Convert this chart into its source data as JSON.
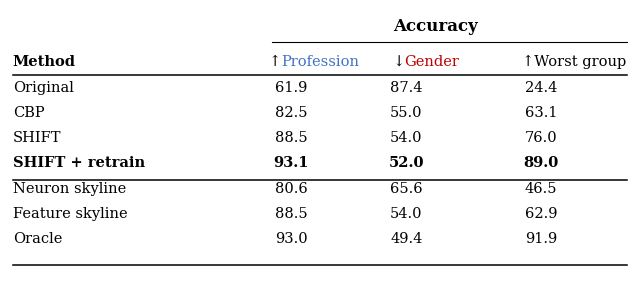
{
  "title": "Accuracy",
  "profession_color": "#4472C4",
  "gender_color": "#C00000",
  "normal_color": "#000000",
  "bg_color": "#FFFFFF",
  "font_size": 10.5,
  "title_font_size": 12.0,
  "group1": [
    {
      "method": "Original",
      "method_smallcaps": false,
      "profession": "61.9",
      "gender": "87.4",
      "worst": "24.4",
      "bold": false
    },
    {
      "method": "CBP",
      "method_smallcaps": false,
      "profession": "82.5",
      "gender": "55.0",
      "worst": "63.1",
      "bold": false
    },
    {
      "method": "SHIFT",
      "method_smallcaps": true,
      "profession": "88.5",
      "gender": "54.0",
      "worst": "76.0",
      "bold": false
    },
    {
      "method": "SHIFT + retrain",
      "method_smallcaps": true,
      "profession": "93.1",
      "gender": "52.0",
      "worst": "89.0",
      "bold": true
    }
  ],
  "group2": [
    {
      "method": "Neuron skyline",
      "method_smallcaps": false,
      "profession": "80.6",
      "gender": "65.6",
      "worst": "46.5",
      "bold": false
    },
    {
      "method": "Feature skyline",
      "method_smallcaps": false,
      "profession": "88.5",
      "gender": "54.0",
      "worst": "62.9",
      "bold": false
    },
    {
      "method": "Oracle",
      "method_smallcaps": false,
      "profession": "93.0",
      "gender": "49.4",
      "worst": "91.9",
      "bold": false
    }
  ]
}
